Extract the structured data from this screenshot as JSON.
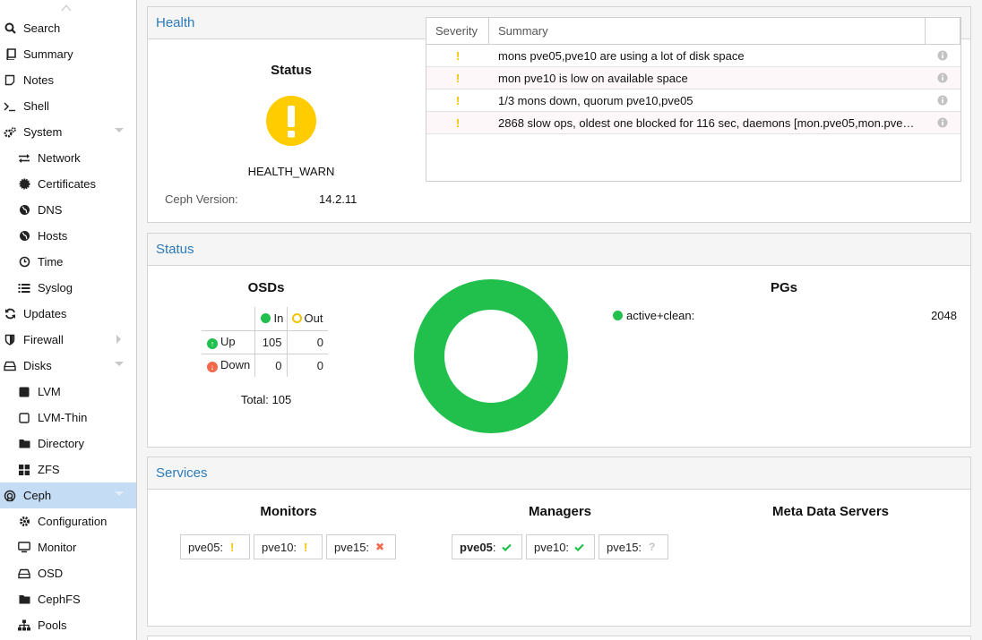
{
  "sidebar": {
    "items": [
      {
        "label": "Search",
        "icon": "search-icon",
        "level": 0
      },
      {
        "label": "Summary",
        "icon": "book-icon",
        "level": 0
      },
      {
        "label": "Notes",
        "icon": "note-icon",
        "level": 0
      },
      {
        "label": "Shell",
        "icon": "terminal-icon",
        "level": 0
      },
      {
        "label": "System",
        "icon": "gears-icon",
        "level": 0,
        "expanded": true
      },
      {
        "label": "Network",
        "icon": "exchange-icon",
        "level": 1
      },
      {
        "label": "Certificates",
        "icon": "certificate-icon",
        "level": 1
      },
      {
        "label": "DNS",
        "icon": "globe-icon",
        "level": 1
      },
      {
        "label": "Hosts",
        "icon": "globe-icon",
        "level": 1
      },
      {
        "label": "Time",
        "icon": "clock-icon",
        "level": 1
      },
      {
        "label": "Syslog",
        "icon": "list-icon",
        "level": 1
      },
      {
        "label": "Updates",
        "icon": "refresh-icon",
        "level": 0
      },
      {
        "label": "Firewall",
        "icon": "shield-icon",
        "level": 0,
        "collapsed": true
      },
      {
        "label": "Disks",
        "icon": "hdd-icon",
        "level": 0,
        "expanded": true
      },
      {
        "label": "LVM",
        "icon": "square-icon",
        "level": 1
      },
      {
        "label": "LVM-Thin",
        "icon": "square-outline-icon",
        "level": 1
      },
      {
        "label": "Directory",
        "icon": "folder-icon",
        "level": 1
      },
      {
        "label": "ZFS",
        "icon": "th-large-icon",
        "level": 1
      },
      {
        "label": "Ceph",
        "icon": "ceph-icon",
        "level": 0,
        "expanded": true,
        "selected": true
      },
      {
        "label": "Configuration",
        "icon": "gear-icon",
        "level": 1
      },
      {
        "label": "Monitor",
        "icon": "desktop-icon",
        "level": 1
      },
      {
        "label": "OSD",
        "icon": "hdd-icon",
        "level": 1
      },
      {
        "label": "CephFS",
        "icon": "folder-icon",
        "level": 1
      },
      {
        "label": "Pools",
        "icon": "sitemap-icon",
        "level": 1
      }
    ]
  },
  "health": {
    "title": "Health",
    "status_title": "Status",
    "status_text": "HEALTH_WARN",
    "version_label": "Ceph Version:",
    "version_value": "14.2.11",
    "warn_color": "#ffcc00",
    "grid": {
      "col_severity": "Severity",
      "col_summary": "Summary",
      "rows": [
        {
          "severity": "!",
          "summary": "mons pve05,pve10 are using a lot of disk space"
        },
        {
          "severity": "!",
          "summary": "mon pve10 is low on available space"
        },
        {
          "severity": "!",
          "summary": "1/3 mons down, quorum pve10,pve05"
        },
        {
          "severity": "!",
          "summary": "2868 slow ops, oldest one blocked for 116 sec, daemons [mon.pve05,mon.pve…"
        }
      ]
    }
  },
  "status": {
    "title": "Status",
    "osds_title": "OSDs",
    "col_in": "In",
    "col_out": "Out",
    "row_up": "Up",
    "row_down": "Down",
    "up_in": "105",
    "up_out": "0",
    "down_in": "0",
    "down_out": "0",
    "total": "Total: 105",
    "pgs_title": "PGs",
    "pg_state": "active+clean:",
    "pg_count": "2048",
    "pg_color": "#21bf4b"
  },
  "services": {
    "title": "Services",
    "monitors_title": "Monitors",
    "managers_title": "Managers",
    "mds_title": "Meta Data Servers",
    "monitors": [
      {
        "name": "pve05:",
        "state": "warning"
      },
      {
        "name": "pve10:",
        "state": "warning"
      },
      {
        "name": "pve15:",
        "state": "error"
      }
    ],
    "managers": [
      {
        "name": "pve05",
        "suffix": ":",
        "state": "ok",
        "active": true
      },
      {
        "name": "pve10:",
        "state": "ok"
      },
      {
        "name": "pve15:",
        "state": "unknown"
      }
    ]
  }
}
